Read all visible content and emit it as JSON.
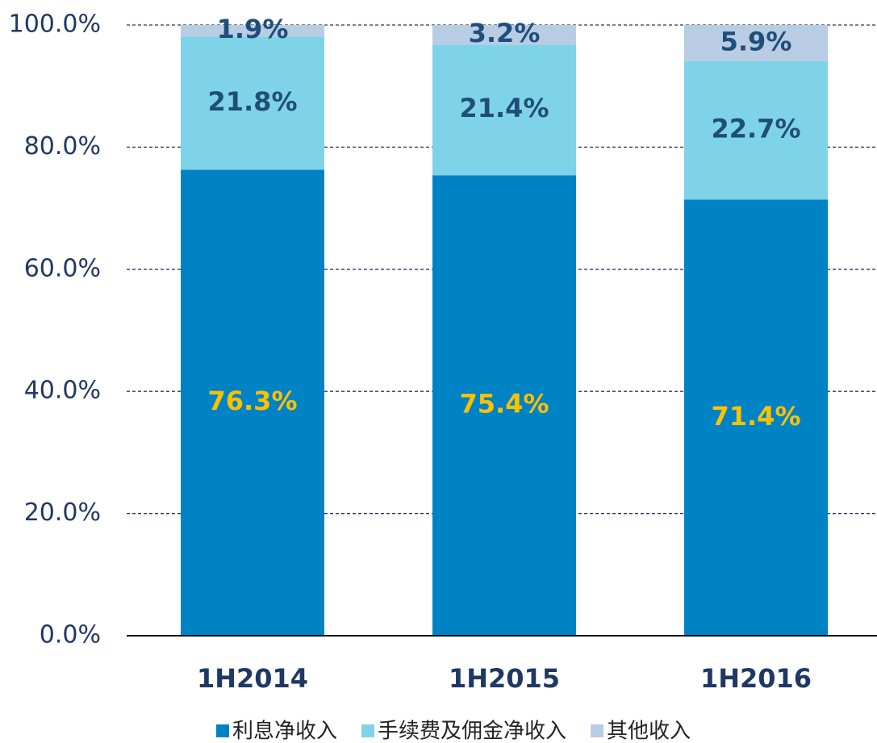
{
  "chart_data": {
    "type": "stacked_bar",
    "categories": [
      "1H2014",
      "1H2015",
      "1H2016"
    ],
    "series": [
      {
        "name": "利息净收入",
        "color": "#0083c4",
        "label_color": "#ffc000",
        "values": [
          76.3,
          75.4,
          71.4
        ],
        "value_labels": [
          "76.3%",
          "75.4%",
          "71.4%"
        ]
      },
      {
        "name": "手续费及佣金净收入",
        "color": "#7fd3e8",
        "label_color": "#1f4e79",
        "values": [
          21.8,
          21.4,
          22.7
        ],
        "value_labels": [
          "21.8%",
          "21.4%",
          "22.7%"
        ]
      },
      {
        "name": "其他收入",
        "color": "#b8cce4",
        "label_color": "#1f4e79",
        "values": [
          1.9,
          3.2,
          5.9
        ],
        "value_labels": [
          "1.9%",
          "3.2%",
          "5.9%"
        ]
      }
    ],
    "ylim": [
      0,
      100
    ],
    "yticks": [
      {
        "value": 0,
        "label": "0.0%"
      },
      {
        "value": 20,
        "label": "20.0%"
      },
      {
        "value": 40,
        "label": "40.0%"
      },
      {
        "value": 60,
        "label": "60.0%"
      },
      {
        "value": 80,
        "label": "80.0%"
      },
      {
        "value": 100,
        "label": "100.0%"
      }
    ],
    "grid": true,
    "legend": "bottom"
  }
}
